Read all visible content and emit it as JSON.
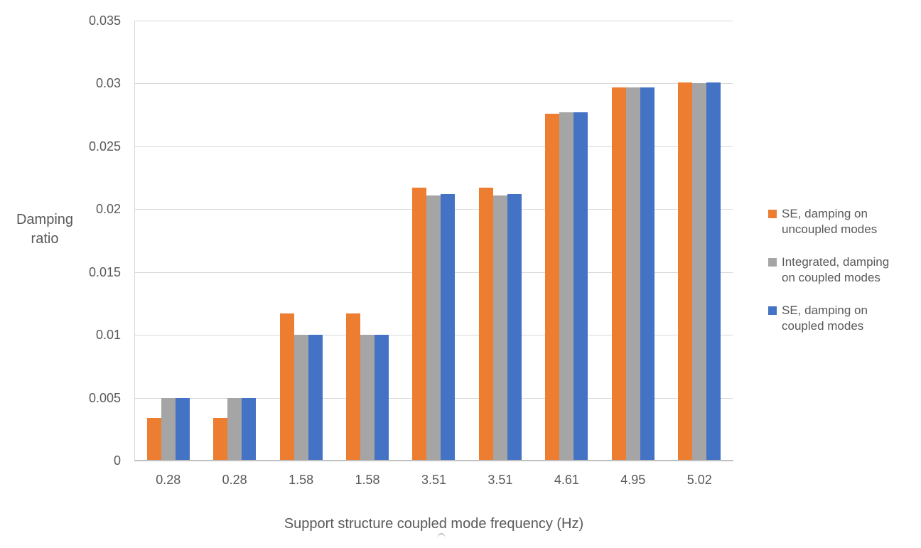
{
  "chart_data": {
    "type": "bar",
    "title": "",
    "xlabel": "Support structure coupled mode frequency (Hz)",
    "ylabel": "Damping ratio",
    "categories": [
      "0.28",
      "0.28",
      "1.58",
      "1.58",
      "3.51",
      "3.51",
      "4.61",
      "4.95",
      "5.02"
    ],
    "series": [
      {
        "name": "SE, damping on uncoupled modes",
        "legend_lines": [
          "SE, damping on",
          "uncoupled modes"
        ],
        "color": "#ED7D31",
        "values": [
          0.0034,
          0.0034,
          0.0117,
          0.0117,
          0.0217,
          0.0217,
          0.0276,
          0.0297,
          0.0301
        ]
      },
      {
        "name": "Integrated, damping on coupled modes",
        "legend_lines": [
          "Integrated, damping",
          "on coupled modes"
        ],
        "color": "#A5A5A5",
        "values": [
          0.005,
          0.005,
          0.01,
          0.01,
          0.0211,
          0.0211,
          0.0277,
          0.0297,
          0.03
        ]
      },
      {
        "name": "SE, damping on coupled modes",
        "legend_lines": [
          "SE, damping on",
          "coupled modes"
        ],
        "color": "#4472C4",
        "values": [
          0.005,
          0.005,
          0.01,
          0.01,
          0.0212,
          0.0212,
          0.0277,
          0.0297,
          0.0301
        ]
      }
    ],
    "ylim": [
      0,
      0.035
    ],
    "ytick_step": 0.005,
    "yticks": [
      "0.035",
      "0.03",
      "0.025",
      "0.02",
      "0.015",
      "0.01",
      "0.005",
      "0"
    ],
    "grid": true,
    "legend_position": "right",
    "colors": {
      "text": "#595959",
      "gridline": "#D9D9D9",
      "axis_line": "#BFBFBF",
      "background": "#FFFFFF"
    }
  }
}
